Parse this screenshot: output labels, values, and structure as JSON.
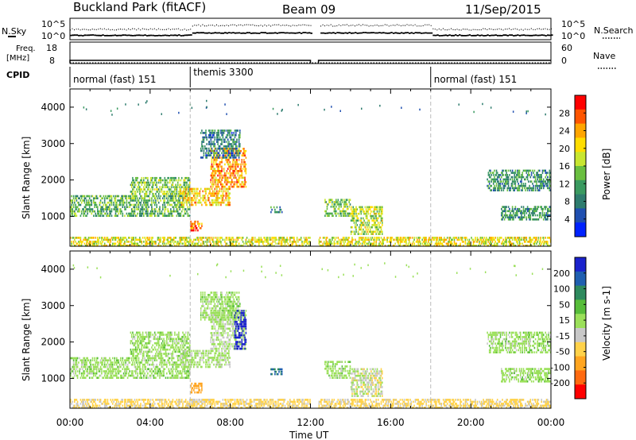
{
  "header": {
    "station": "Buckland Park (fitACF)",
    "beam": "Beam 09",
    "date": "11/Sep/2015"
  },
  "strips": {
    "nsky_label": "N.Sky",
    "nsearch_label": "N.Search",
    "noise_ticks": [
      "10^5",
      "10^0"
    ],
    "freq_label_1": "Freq.",
    "freq_label_2": "[MHz]",
    "freq_ticks": [
      "18",
      "8"
    ],
    "nave_label": "Nave",
    "nave_ticks": [
      "60",
      "0"
    ],
    "cpid_label": "CPID",
    "modes": [
      {
        "label": "normal (fast) 151",
        "start_hour": 0
      },
      {
        "label": "themis 3300",
        "start_hour": 6
      },
      {
        "label": "normal (fast) 151",
        "start_hour": 18
      }
    ]
  },
  "xaxis": {
    "label": "Time UT",
    "ticks": [
      "00:00",
      "04:00",
      "08:00",
      "12:00",
      "16:00",
      "20:00",
      "00:00"
    ]
  },
  "chart_data": [
    {
      "type": "heatmap",
      "name": "power",
      "ylabel": "Slant Range [km]",
      "yticks": [
        "4000",
        "3000",
        "2000",
        "1000"
      ],
      "ytick_values": [
        4000,
        3000,
        2000,
        1000
      ],
      "ylim": [
        180,
        4500
      ],
      "xlim_hours": [
        0,
        24
      ],
      "colorbar_label": "Power [dB]",
      "colorbar_ticks": [
        "28",
        "24",
        "20",
        "16",
        "12",
        "8",
        "4"
      ],
      "colorbar_colors": [
        "#ff0000",
        "#ff5500",
        "#ffa500",
        "#ffdd00",
        "#c8e630",
        "#6abf40",
        "#3a9a60",
        "#2e7c6e",
        "#1f4fb0",
        "#0022ff"
      ],
      "data_gaps_hours": [
        [
          12.0,
          12.4
        ]
      ],
      "echo_regions": [
        {
          "t0": 0.0,
          "t1": 6.0,
          "r0": 1000,
          "r1": 1600,
          "level": 12
        },
        {
          "t0": 3.0,
          "t1": 6.0,
          "r0": 1600,
          "r1": 2100,
          "level": 14
        },
        {
          "t0": 5.5,
          "t1": 8.0,
          "r0": 1300,
          "r1": 1800,
          "level": 20
        },
        {
          "t0": 7.0,
          "t1": 8.8,
          "r0": 1800,
          "r1": 2900,
          "level": 22
        },
        {
          "t0": 6.5,
          "t1": 8.5,
          "r0": 2600,
          "r1": 3400,
          "level": 8
        },
        {
          "t0": 6.0,
          "t1": 6.6,
          "r0": 600,
          "r1": 900,
          "level": 24
        },
        {
          "t0": 10.0,
          "t1": 10.6,
          "r0": 1100,
          "r1": 1300,
          "level": 8
        },
        {
          "t0": 12.7,
          "t1": 14.0,
          "r0": 1000,
          "r1": 1500,
          "level": 14
        },
        {
          "t0": 14.0,
          "t1": 15.6,
          "r0": 500,
          "r1": 1300,
          "level": 16
        },
        {
          "t0": 20.8,
          "t1": 24.0,
          "r0": 1700,
          "r1": 2300,
          "level": 10
        },
        {
          "t0": 21.5,
          "t1": 24.0,
          "r0": 900,
          "r1": 1300,
          "level": 10
        },
        {
          "t0": 0.0,
          "t1": 24.0,
          "r0": 180,
          "r1": 450,
          "level": 18
        }
      ]
    },
    {
      "type": "heatmap",
      "name": "velocity",
      "ylabel": "Slant Range [km]",
      "yticks": [
        "4000",
        "3000",
        "2000",
        "1000"
      ],
      "ytick_values": [
        4000,
        3000,
        2000,
        1000
      ],
      "ylim": [
        180,
        4500
      ],
      "xlim_hours": [
        0,
        24
      ],
      "colorbar_label": "Velocity [m s-1]",
      "colorbar_ticks": [
        "200",
        "100",
        "50",
        "15",
        "-15",
        "-50",
        "-100",
        "-200"
      ],
      "colorbar_colors": [
        "#1a22cc",
        "#1f5fb0",
        "#2e8a5e",
        "#57bd3a",
        "#9be05a",
        "#c8c8c8",
        "#ffd24a",
        "#ffa520",
        "#ff6a10",
        "#ff0000"
      ],
      "data_gaps_hours": [
        [
          12.0,
          12.4
        ]
      ],
      "echo_regions": [
        {
          "t0": 0.0,
          "t1": 6.0,
          "r0": 1000,
          "r1": 1600,
          "level": 0
        },
        {
          "t0": 3.0,
          "t1": 6.0,
          "r0": 1600,
          "r1": 2300,
          "level": 0
        },
        {
          "t0": 5.5,
          "t1": 8.0,
          "r0": 1300,
          "r1": 1800,
          "level": -5
        },
        {
          "t0": 7.0,
          "t1": 8.8,
          "r0": 1800,
          "r1": 2900,
          "level": -10
        },
        {
          "t0": 8.2,
          "t1": 8.8,
          "r0": 1800,
          "r1": 2900,
          "level": 200
        },
        {
          "t0": 6.5,
          "t1": 8.5,
          "r0": 2600,
          "r1": 3400,
          "level": 0
        },
        {
          "t0": 6.0,
          "t1": 6.6,
          "r0": 600,
          "r1": 900,
          "level": -100
        },
        {
          "t0": 10.0,
          "t1": 10.6,
          "r0": 1100,
          "r1": 1300,
          "level": 80
        },
        {
          "t0": 12.7,
          "t1": 14.0,
          "r0": 1000,
          "r1": 1500,
          "level": 0
        },
        {
          "t0": 14.0,
          "t1": 15.6,
          "r0": 500,
          "r1": 1300,
          "level": -20
        },
        {
          "t0": 20.8,
          "t1": 24.0,
          "r0": 1700,
          "r1": 2300,
          "level": 0
        },
        {
          "t0": 21.5,
          "t1": 24.0,
          "r0": 900,
          "r1": 1300,
          "level": 0
        },
        {
          "t0": 0.0,
          "t1": 24.0,
          "r0": 180,
          "r1": 450,
          "level": -40
        }
      ]
    }
  ]
}
